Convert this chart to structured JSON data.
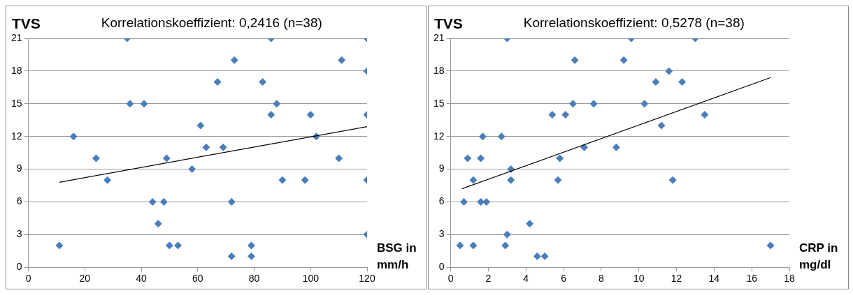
{
  "chart_data": [
    {
      "type": "scatter",
      "title": "Korrelationskoeffizient: 0,2416 (n=38)",
      "ylabel": "TVS",
      "xlabel": "BSG in mm/h",
      "xlim": [
        0,
        120
      ],
      "xticks": [
        0,
        20,
        40,
        60,
        80,
        100,
        120
      ],
      "ylim": [
        0,
        21
      ],
      "yticks": [
        0,
        3,
        6,
        9,
        12,
        15,
        18,
        21
      ],
      "grid": "y",
      "marker": "diamond",
      "series": [
        {
          "color": "#4a7ebb",
          "x": [
            11,
            16,
            24,
            28,
            35,
            36,
            41,
            44,
            46,
            48,
            49,
            50,
            53,
            58,
            61,
            63,
            67,
            69,
            72,
            72,
            73,
            79,
            79,
            83,
            86,
            86,
            88,
            90,
            98,
            100,
            102,
            110,
            111,
            120,
            120,
            120,
            120,
            120
          ],
          "values": [
            2,
            12,
            10,
            8,
            21,
            15,
            15,
            6,
            4,
            6,
            10,
            2,
            2,
            9,
            13,
            11,
            17,
            11,
            6,
            1,
            19,
            2,
            1,
            17,
            21,
            14,
            15,
            8,
            8,
            14,
            12,
            10,
            19,
            21,
            18,
            14,
            8,
            3
          ]
        },
        {
          "type": "line",
          "color": "#000000",
          "marker": "none",
          "x": [
            11,
            120
          ],
          "values": [
            7.8,
            12.9
          ]
        }
      ]
    },
    {
      "type": "scatter",
      "title": "Korrelationskoeffizient: 0,5278 (n=38)",
      "ylabel": "TVS",
      "xlabel": "CRP in mg/dl",
      "xlim": [
        0,
        18
      ],
      "xticks": [
        0,
        2,
        4,
        6,
        8,
        10,
        12,
        14,
        16,
        18
      ],
      "ylim": [
        0,
        21
      ],
      "yticks": [
        0,
        3,
        6,
        9,
        12,
        15,
        18,
        21
      ],
      "grid": "y",
      "marker": "diamond",
      "series": [
        {
          "color": "#4a7ebb",
          "x": [
            0.5,
            0.7,
            0.9,
            1.2,
            1.2,
            1.6,
            1.6,
            1.7,
            1.9,
            2.7,
            2.9,
            3.0,
            3.0,
            3.2,
            3.2,
            4.2,
            4.6,
            5.0,
            5.4,
            5.7,
            5.8,
            6.1,
            6.5,
            6.6,
            7.1,
            7.6,
            8.8,
            9.2,
            9.6,
            10.3,
            10.9,
            11.2,
            11.6,
            11.8,
            12.3,
            13.0,
            13.5,
            17.0
          ],
          "values": [
            2,
            6,
            10,
            8,
            2,
            6,
            10,
            12,
            6,
            12,
            2,
            3,
            21,
            9,
            8,
            4,
            1,
            1,
            14,
            8,
            10,
            14,
            15,
            19,
            11,
            15,
            11,
            19,
            21,
            15,
            17,
            13,
            18,
            8,
            17,
            21,
            14,
            2
          ]
        },
        {
          "type": "line",
          "color": "#000000",
          "marker": "none",
          "x": [
            0.6,
            17.0
          ],
          "values": [
            7.2,
            17.4
          ]
        }
      ]
    }
  ]
}
